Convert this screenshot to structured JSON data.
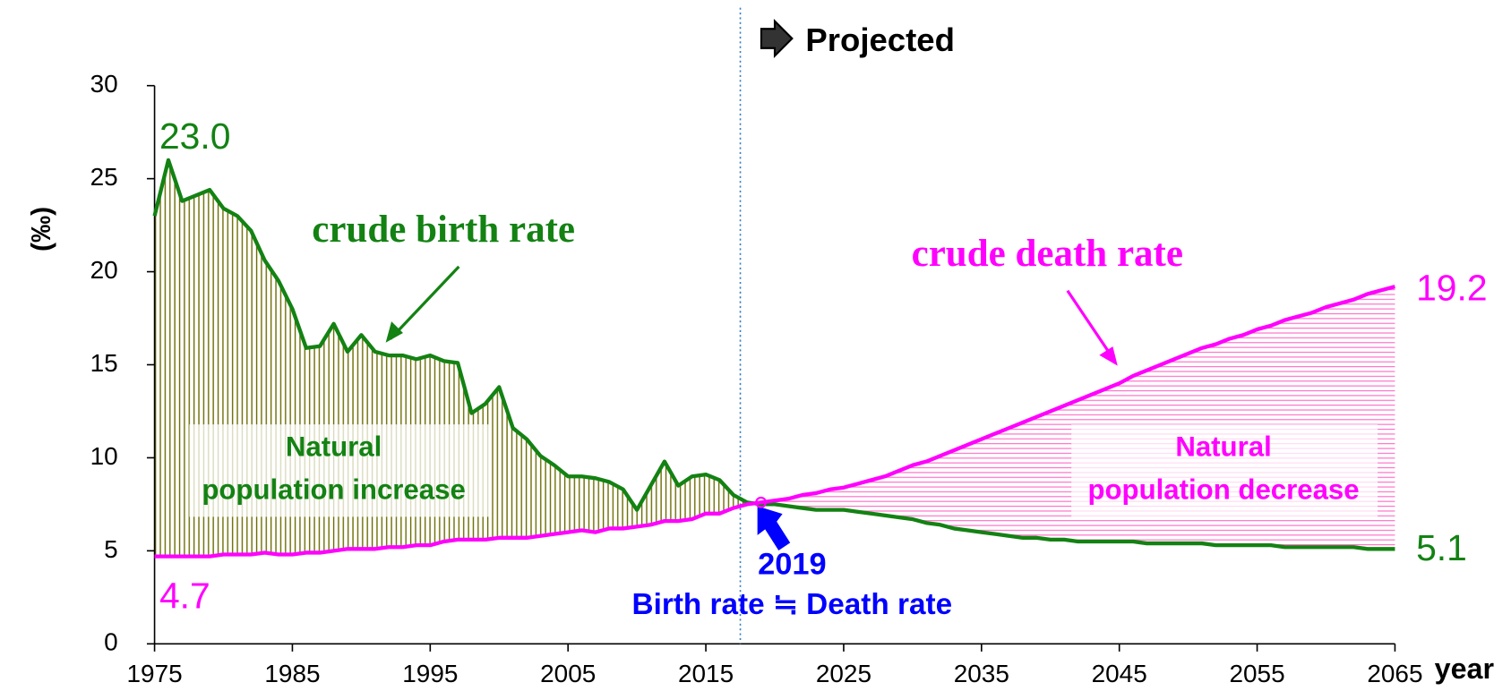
{
  "chart_data": {
    "type": "line",
    "x_label": "year",
    "y_label": "(‰)",
    "x": [
      1975,
      1976,
      1977,
      1978,
      1979,
      1980,
      1981,
      1982,
      1983,
      1984,
      1985,
      1986,
      1987,
      1988,
      1989,
      1990,
      1991,
      1992,
      1993,
      1994,
      1995,
      1996,
      1997,
      1998,
      1999,
      2000,
      2001,
      2002,
      2003,
      2004,
      2005,
      2006,
      2007,
      2008,
      2009,
      2010,
      2011,
      2012,
      2013,
      2014,
      2015,
      2016,
      2017,
      2018,
      2019,
      2020,
      2021,
      2022,
      2023,
      2024,
      2025,
      2026,
      2027,
      2028,
      2029,
      2030,
      2031,
      2032,
      2033,
      2034,
      2035,
      2036,
      2037,
      2038,
      2039,
      2040,
      2041,
      2042,
      2043,
      2044,
      2045,
      2046,
      2047,
      2048,
      2049,
      2050,
      2051,
      2052,
      2053,
      2054,
      2055,
      2056,
      2057,
      2058,
      2059,
      2060,
      2061,
      2062,
      2063,
      2064,
      2065
    ],
    "series": [
      {
        "name": "crude birth rate",
        "color": "#138213",
        "values": [
          23.0,
          26.0,
          23.8,
          24.1,
          24.4,
          23.4,
          23.0,
          22.2,
          20.6,
          19.5,
          18.0,
          15.9,
          16.0,
          17.2,
          15.7,
          16.6,
          15.7,
          15.5,
          15.5,
          15.3,
          15.5,
          15.2,
          15.1,
          12.4,
          12.9,
          13.8,
          11.6,
          11.0,
          10.1,
          9.6,
          9.0,
          9.0,
          8.9,
          8.7,
          8.3,
          7.2,
          8.5,
          9.8,
          8.5,
          9.0,
          9.1,
          8.8,
          8.0,
          7.6,
          7.5,
          7.5,
          7.4,
          7.3,
          7.2,
          7.2,
          7.2,
          7.1,
          7.0,
          6.9,
          6.8,
          6.7,
          6.5,
          6.4,
          6.2,
          6.1,
          6.0,
          5.9,
          5.8,
          5.7,
          5.7,
          5.6,
          5.6,
          5.5,
          5.5,
          5.5,
          5.5,
          5.5,
          5.4,
          5.4,
          5.4,
          5.4,
          5.4,
          5.3,
          5.3,
          5.3,
          5.3,
          5.3,
          5.2,
          5.2,
          5.2,
          5.2,
          5.2,
          5.2,
          5.1,
          5.1,
          5.1
        ],
        "value_labels": [
          "23.0",
          null,
          null,
          null,
          null,
          null,
          null,
          null,
          null,
          null,
          null,
          null,
          null,
          null,
          null,
          null,
          null,
          null,
          null,
          null,
          null,
          null,
          null,
          null,
          null,
          null,
          null,
          null,
          null,
          null,
          null,
          null,
          null,
          null,
          null,
          null,
          null,
          null,
          null,
          null,
          null,
          null,
          null,
          null,
          null,
          null,
          null,
          null,
          null,
          null,
          null,
          null,
          null,
          null,
          null,
          null,
          null,
          null,
          null,
          null,
          null,
          null,
          null,
          null,
          null,
          null,
          null,
          null,
          null,
          null,
          null,
          null,
          null,
          null,
          null,
          null,
          null,
          null,
          null,
          null,
          null,
          null,
          null,
          null,
          null,
          null,
          null,
          null,
          null,
          null,
          null
        ],
        "hatch_color": "#6b6b00"
      },
      {
        "name": "crude death rate",
        "color": "#ff00ff",
        "values": [
          4.7,
          4.7,
          4.7,
          4.7,
          4.7,
          4.8,
          4.8,
          4.8,
          4.9,
          4.8,
          4.8,
          4.9,
          4.9,
          5.0,
          5.1,
          5.1,
          5.1,
          5.2,
          5.2,
          5.3,
          5.3,
          5.5,
          5.6,
          5.6,
          5.6,
          5.7,
          5.7,
          5.7,
          5.8,
          5.9,
          6.0,
          6.1,
          6.0,
          6.2,
          6.2,
          6.3,
          6.4,
          6.6,
          6.6,
          6.7,
          7.0,
          7.0,
          7.3,
          7.5,
          7.6,
          7.7,
          7.8,
          8.0,
          8.1,
          8.3,
          8.4,
          8.6,
          8.8,
          9.0,
          9.3,
          9.6,
          9.8,
          10.1,
          10.4,
          10.7,
          11.0,
          11.3,
          11.6,
          11.9,
          12.2,
          12.5,
          12.8,
          13.1,
          13.4,
          13.7,
          14.0,
          14.4,
          14.7,
          15.0,
          15.3,
          15.6,
          15.9,
          16.1,
          16.4,
          16.6,
          16.9,
          17.1,
          17.4,
          17.6,
          17.8,
          18.1,
          18.3,
          18.5,
          18.8,
          19.0,
          19.2
        ],
        "hatch_color": "#ff6fc8"
      }
    ],
    "xlim": [
      1975,
      2065
    ],
    "xticks": [
      1975,
      1985,
      1995,
      2005,
      2015,
      2025,
      2035,
      2045,
      2055,
      2065
    ],
    "ylim": [
      0,
      30
    ],
    "yticks": [
      0,
      5,
      10,
      15,
      20,
      25,
      30
    ],
    "projection_start": 2017.5,
    "projection_label": "Projected",
    "annotations": {
      "increase": [
        "Natural",
        "population increase"
      ],
      "decrease": [
        "Natural",
        "population decrease"
      ],
      "crossing_year": "2019",
      "crossing_text": "Birth rate ≒ Death rate"
    }
  }
}
